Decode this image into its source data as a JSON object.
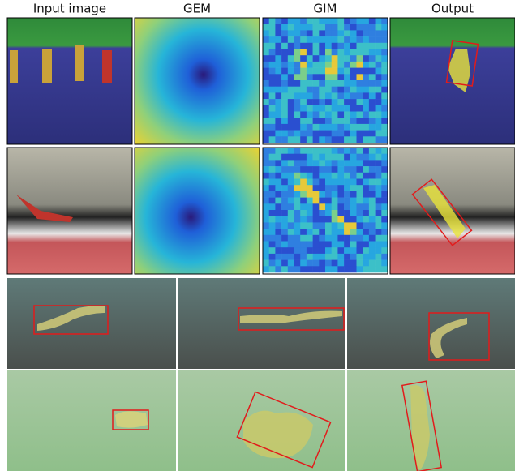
{
  "header": {
    "columns": [
      "Input image",
      "GEM",
      "GIM",
      "Output"
    ]
  }
}
